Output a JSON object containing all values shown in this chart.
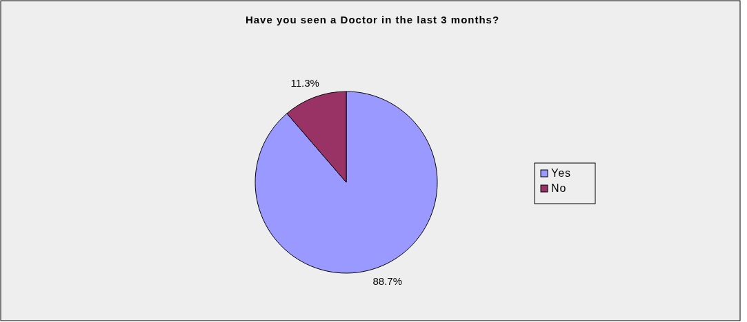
{
  "chart_data": {
    "type": "pie",
    "title": "Have you seen a Doctor in the last 3 months?",
    "categories": [
      "Yes",
      "No"
    ],
    "values": [
      88.7,
      11.3
    ],
    "colors": [
      "#9999ff",
      "#993366"
    ],
    "value_labels": [
      "88.7%",
      "11.3%"
    ],
    "legend": "right"
  }
}
